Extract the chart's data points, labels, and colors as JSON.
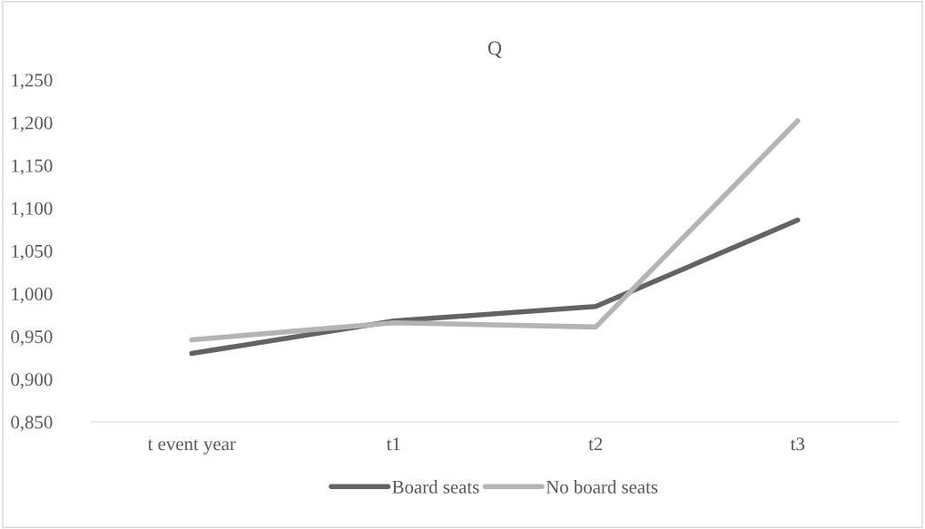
{
  "chart_data": {
    "type": "line",
    "title": "Q",
    "categories": [
      "t event year",
      "t1",
      "t2",
      "t3"
    ],
    "series": [
      {
        "name": "Board seats",
        "color": "#636363",
        "values": [
          0.93,
          0.968,
          0.985,
          1.086
        ]
      },
      {
        "name": "No board seats",
        "color": "#b4b4b4",
        "values": [
          0.946,
          0.966,
          0.961,
          1.202
        ]
      }
    ],
    "ylim": [
      0.85,
      1.25
    ],
    "yticks": [
      {
        "value": 0.85,
        "label": "0,850"
      },
      {
        "value": 0.9,
        "label": "0,900"
      },
      {
        "value": 0.95,
        "label": "0,950"
      },
      {
        "value": 1.0,
        "label": "1,000"
      },
      {
        "value": 1.05,
        "label": "1,050"
      },
      {
        "value": 1.1,
        "label": "1,100"
      },
      {
        "value": 1.15,
        "label": "1,150"
      },
      {
        "value": 1.2,
        "label": "1,200"
      },
      {
        "value": 1.25,
        "label": "1,250"
      }
    ],
    "grid": false,
    "legend": "bottom",
    "marker": "none",
    "line_style": "solid"
  }
}
